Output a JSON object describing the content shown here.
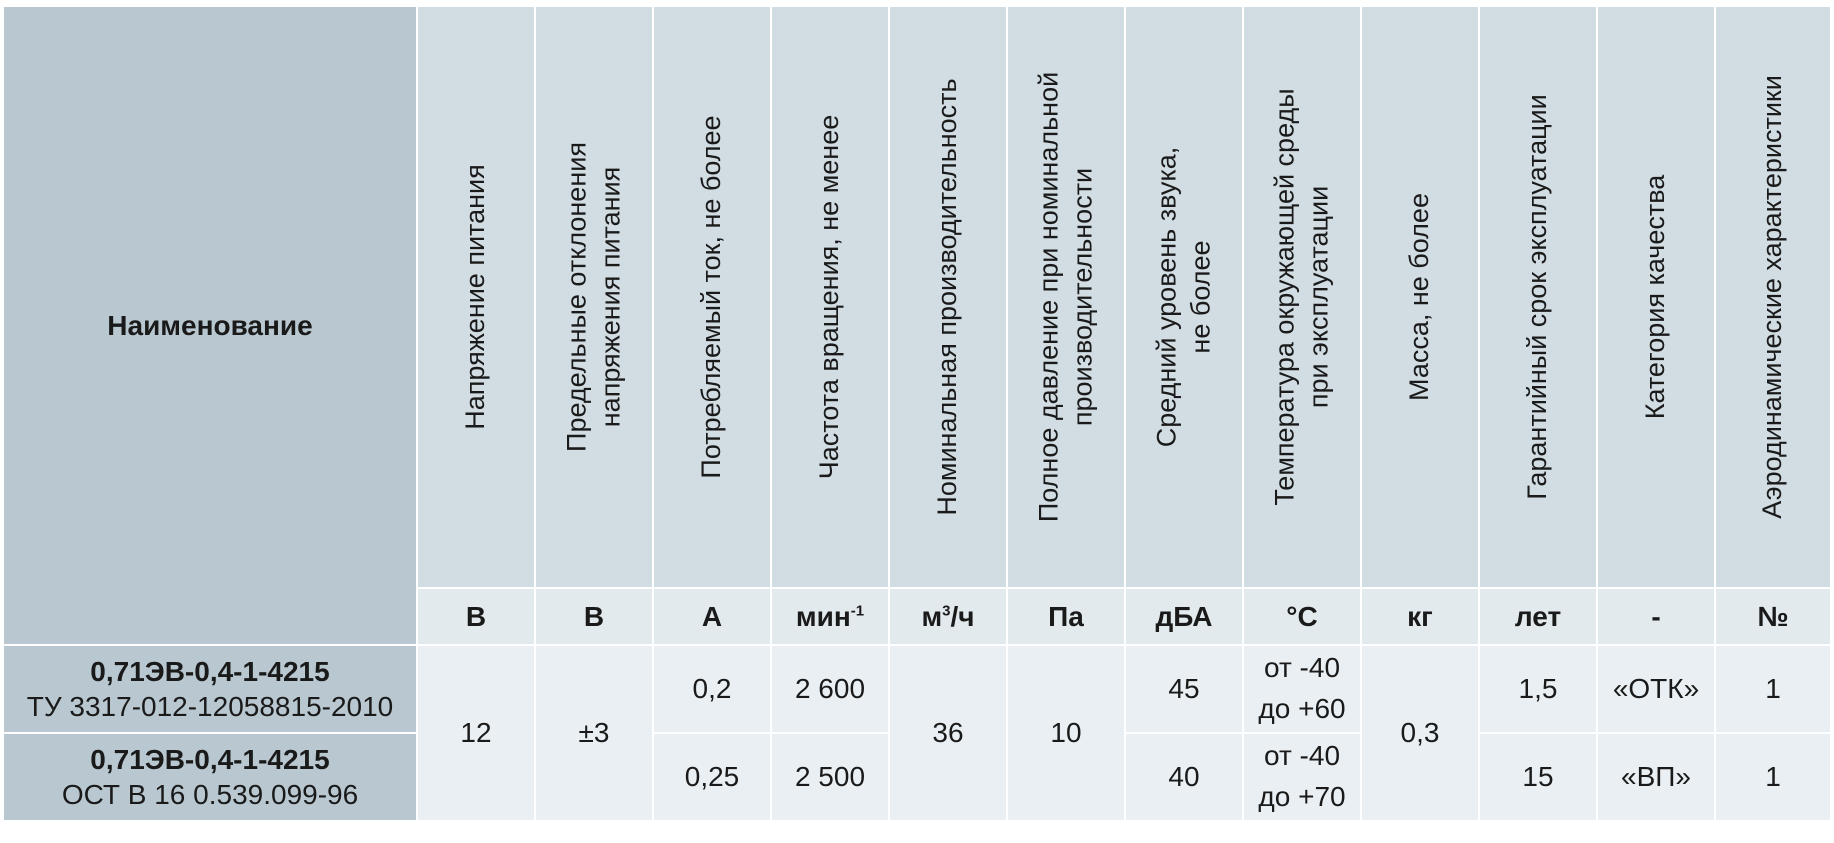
{
  "table": {
    "name_header": "Наименование",
    "columns": [
      {
        "title": [
          "Напряжение  питания"
        ],
        "unit": "В"
      },
      {
        "title": [
          "Предельные отклонения",
          "напряжения питания"
        ],
        "unit": "В"
      },
      {
        "title": [
          "Потребляемый ток, не более"
        ],
        "unit": "А"
      },
      {
        "title": [
          "Частота вращения, не менее"
        ],
        "unit": "мин",
        "unit_sup": "-1"
      },
      {
        "title": [
          "Номинальная производительность"
        ],
        "unit": "м",
        "unit_sup": "3",
        "unit_tail": "/ч"
      },
      {
        "title": [
          "Полное давление при номинальной",
          "производительности"
        ],
        "unit": "Па"
      },
      {
        "title": [
          "Средний уровень звука,",
          "не более"
        ],
        "unit": "дБА"
      },
      {
        "title": [
          "Температура окружающей среды",
          "при эксплуатации"
        ],
        "unit": "°С"
      },
      {
        "title": [
          "Масса, не более"
        ],
        "unit": "кг"
      },
      {
        "title": [
          "Гарантийный срок эксплуатации"
        ],
        "unit": "лет"
      },
      {
        "title": [
          "Категория качества"
        ],
        "unit": "-"
      },
      {
        "title": [
          "Аэродинамические характеристики"
        ],
        "unit": "№"
      }
    ],
    "rows": [
      {
        "name": "0,71ЭВ-0,4-1-4215",
        "spec": "ТУ 3317-012-12058815-2010",
        "current": "0,2",
        "rpm": "2 600",
        "sound": "45",
        "temp_from": "от -40",
        "temp_to": "до +60",
        "warranty": "1,5",
        "quality": "«ОТК»",
        "aero": "1"
      },
      {
        "name": "0,71ЭВ-0,4-1-4215",
        "spec": "ОСТ В 16 0.539.099-96",
        "current": "0,25",
        "rpm": "2 500",
        "sound": "40",
        "temp_from": "от -40",
        "temp_to": "до +70",
        "warranty": "15",
        "quality": "«ВП»",
        "aero": "1"
      }
    ],
    "shared": {
      "voltage": "12",
      "deviation": "±3",
      "flow": "36",
      "pressure": "10",
      "mass": "0,3"
    }
  }
}
